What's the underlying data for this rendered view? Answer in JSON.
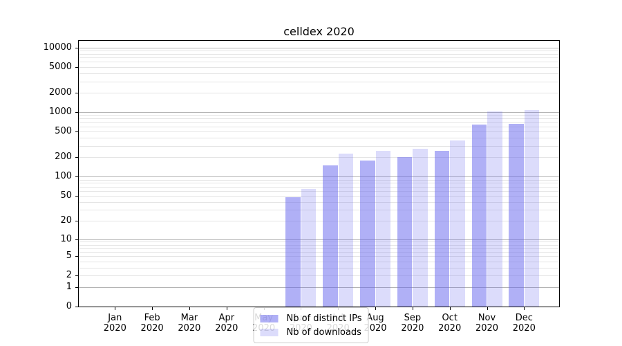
{
  "title": "celldex 2020",
  "chart_data": {
    "type": "bar",
    "title": "celldex 2020",
    "categories": [
      "Jan",
      "Feb",
      "Mar",
      "Apr",
      "May",
      "Jun",
      "Jul",
      "Aug",
      "Sep",
      "Oct",
      "Nov",
      "Dec"
    ],
    "x_year": "2020",
    "series": [
      {
        "name": "Nb of distinct IPs",
        "values": [
          0,
          0,
          0,
          0,
          0,
          48,
          150,
          180,
          200,
          255,
          640,
          665
        ],
        "color": "rgba(97,97,237,0.5)",
        "legend_swatch_color": "rgba(97,97,237,0.5)"
      },
      {
        "name": "Nb of downloads",
        "values": [
          0,
          0,
          0,
          0,
          0,
          64,
          230,
          250,
          275,
          365,
          1025,
          1075
        ],
        "color": "rgba(97,97,237,0.22)",
        "legend_swatch_color": "rgba(97,97,237,0.22)"
      }
    ],
    "y_ticks": [
      10000,
      5000,
      2000,
      1000,
      500,
      200,
      100,
      50,
      20,
      10,
      5,
      2,
      1,
      0
    ],
    "y_scale": "log10(1+y)",
    "ylim": [
      0,
      13300
    ],
    "grid": "both-horizontal",
    "legend_position": "lower center inside",
    "colors": {
      "bar_distinct_ips_apparent": "#aaaaf5",
      "bar_downloads_apparent": "#dbdbfa",
      "grid_major": "#b4b4b4",
      "grid_minor": "#e4e4e4",
      "axis": "#000000",
      "background": "#ffffff"
    }
  }
}
